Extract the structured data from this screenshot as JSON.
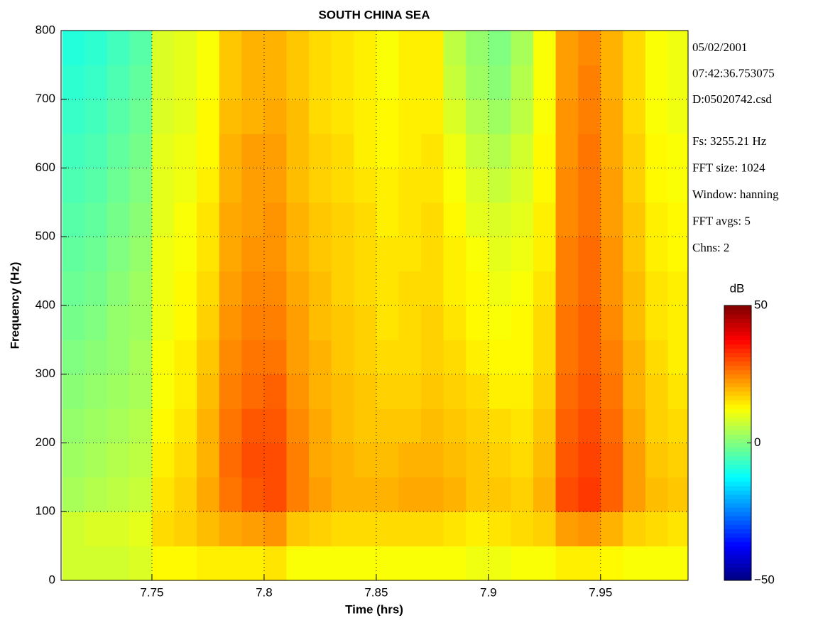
{
  "chart_data": {
    "type": "heatmap",
    "title": "SOUTH CHINA SEA",
    "xlabel": "Time (hrs)",
    "ylabel": "Frequency (Hz)",
    "xlim": [
      7.7095,
      7.989
    ],
    "ylim": [
      0,
      800
    ],
    "xticks": [
      7.75,
      7.8,
      7.85,
      7.9,
      7.95
    ],
    "yticks": [
      0,
      100,
      200,
      300,
      400,
      500,
      600,
      700,
      800
    ],
    "grid": true,
    "colormap": "jet",
    "colorbar_label": "dB",
    "clim": [
      -50,
      50
    ],
    "colorbar_ticks": [
      {
        "value": -50,
        "label": "−50"
      },
      0,
      50
    ],
    "annotations": [
      "05/02/2001",
      "07:42:36.753075",
      "D:05020742.csd"
    ],
    "settings": [
      "Fs: 3255.21 Hz",
      "FFT size: 1024",
      "Window: hanning",
      "FFT avgs: 5",
      "Chns: 2"
    ],
    "x_edges": [
      7.71,
      7.72,
      7.73,
      7.74,
      7.75,
      7.76,
      7.77,
      7.78,
      7.79,
      7.8,
      7.81,
      7.82,
      7.83,
      7.84,
      7.85,
      7.86,
      7.87,
      7.88,
      7.89,
      7.9,
      7.91,
      7.92,
      7.93,
      7.94,
      7.95,
      7.96,
      7.97,
      7.98,
      7.99
    ],
    "y_edges": [
      0,
      50,
      100,
      150,
      200,
      250,
      300,
      350,
      400,
      450,
      500,
      550,
      600,
      650,
      700,
      750,
      800
    ],
    "z": [
      [
        8,
        8,
        8,
        9,
        13,
        13,
        14,
        14,
        14,
        15,
        12,
        12,
        12,
        12,
        12,
        12,
        12,
        12,
        11,
        11,
        12,
        12,
        14,
        14,
        13,
        12,
        12,
        12
      ],
      [
        8,
        9,
        9,
        10,
        16,
        17,
        19,
        21,
        22,
        23,
        18,
        17,
        16,
        16,
        16,
        16,
        16,
        15,
        14,
        15,
        16,
        17,
        22,
        23,
        20,
        17,
        16,
        15
      ],
      [
        4,
        5,
        6,
        7,
        15,
        17,
        21,
        26,
        29,
        30,
        25,
        22,
        20,
        20,
        20,
        21,
        21,
        20,
        18,
        18,
        17,
        20,
        30,
        32,
        28,
        22,
        19,
        18
      ],
      [
        3,
        4,
        5,
        6,
        14,
        16,
        20,
        27,
        30,
        30,
        25,
        21,
        20,
        19,
        19,
        20,
        20,
        19,
        18,
        17,
        16,
        19,
        29,
        31,
        28,
        22,
        18,
        17
      ],
      [
        2,
        3,
        4,
        5,
        13,
        15,
        20,
        26,
        29,
        29,
        24,
        21,
        19,
        18,
        18,
        18,
        19,
        18,
        17,
        16,
        15,
        18,
        28,
        30,
        27,
        21,
        17,
        16
      ],
      [
        1,
        2,
        3,
        4,
        12,
        14,
        19,
        25,
        27,
        28,
        23,
        20,
        19,
        18,
        17,
        17,
        18,
        17,
        16,
        14,
        14,
        17,
        27,
        29,
        26,
        20,
        17,
        15
      ],
      [
        0,
        1,
        2,
        4,
        12,
        14,
        18,
        24,
        26,
        26,
        22,
        20,
        18,
        17,
        16,
        16,
        17,
        16,
        14,
        13,
        13,
        16,
        26,
        28,
        25,
        20,
        16,
        14
      ],
      [
        -1,
        0,
        2,
        3,
        11,
        13,
        17,
        23,
        25,
        25,
        22,
        19,
        18,
        17,
        15,
        16,
        17,
        15,
        13,
        12,
        13,
        16,
        26,
        28,
        24,
        19,
        15,
        14
      ],
      [
        -2,
        -1,
        1,
        3,
        11,
        13,
        16,
        22,
        24,
        24,
        21,
        19,
        17,
        16,
        15,
        16,
        16,
        14,
        13,
        11,
        12,
        15,
        25,
        27,
        23,
        19,
        15,
        14
      ],
      [
        -3,
        -2,
        0,
        2,
        11,
        12,
        15,
        21,
        23,
        23,
        20,
        18,
        17,
        16,
        15,
        15,
        16,
        14,
        12,
        10,
        11,
        14,
        25,
        27,
        23,
        18,
        14,
        13
      ],
      [
        -4,
        -3,
        -1,
        1,
        10,
        12,
        15,
        21,
        22,
        23,
        20,
        18,
        17,
        16,
        14,
        15,
        16,
        13,
        10,
        9,
        10,
        14,
        24,
        26,
        22,
        18,
        14,
        13
      ],
      [
        -5,
        -4,
        -2,
        0,
        10,
        11,
        14,
        20,
        22,
        22,
        19,
        17,
        16,
        15,
        14,
        15,
        15,
        12,
        9,
        7,
        9,
        13,
        24,
        26,
        22,
        17,
        13,
        12
      ],
      [
        -6,
        -5,
        -3,
        -1,
        10,
        11,
        13,
        20,
        22,
        22,
        19,
        17,
        16,
        14,
        13,
        14,
        15,
        11,
        7,
        5,
        8,
        13,
        23,
        26,
        21,
        17,
        13,
        12
      ],
      [
        -7,
        -6,
        -4,
        -2,
        9,
        10,
        13,
        19,
        20,
        21,
        19,
        16,
        15,
        14,
        13,
        14,
        14,
        9,
        5,
        3,
        6,
        12,
        23,
        25,
        21,
        16,
        12,
        11
      ],
      [
        -8,
        -7,
        -5,
        -3,
        9,
        10,
        12,
        18,
        20,
        20,
        18,
        16,
        15,
        14,
        12,
        14,
        14,
        7,
        3,
        1,
        5,
        12,
        22,
        25,
        20,
        16,
        12,
        11
      ],
      [
        -9,
        -8,
        -6,
        -4,
        9,
        10,
        12,
        18,
        20,
        20,
        18,
        16,
        15,
        14,
        12,
        14,
        14,
        6,
        2,
        0,
        4,
        12,
        22,
        24,
        20,
        16,
        12,
        11
      ]
    ]
  }
}
